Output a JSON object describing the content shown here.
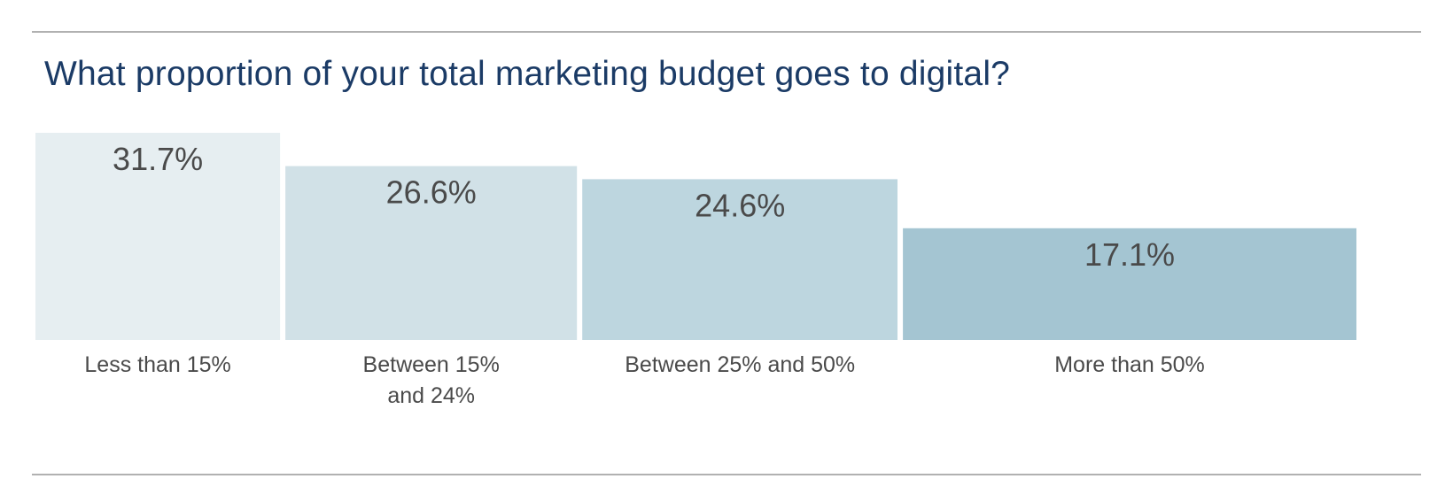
{
  "chart_data": {
    "type": "bar",
    "title": "What proportion of your total marketing budget goes to digital?",
    "categories": [
      [
        "Less than 15%"
      ],
      [
        "Between 15%",
        "and 24%"
      ],
      [
        "Between 25% and 50%"
      ],
      [
        "More than 50%"
      ]
    ],
    "values": [
      31.7,
      26.6,
      24.6,
      17.1
    ],
    "value_labels": [
      "31.7%",
      "26.6%",
      "24.6%",
      "17.1%"
    ],
    "colors": [
      "#e6eef1",
      "#d1e1e7",
      "#bdd6df",
      "#a4c5d2"
    ],
    "xlabel": "",
    "ylabel": "",
    "ylim": [
      0,
      31.7
    ],
    "grid": false,
    "legend": "none"
  }
}
